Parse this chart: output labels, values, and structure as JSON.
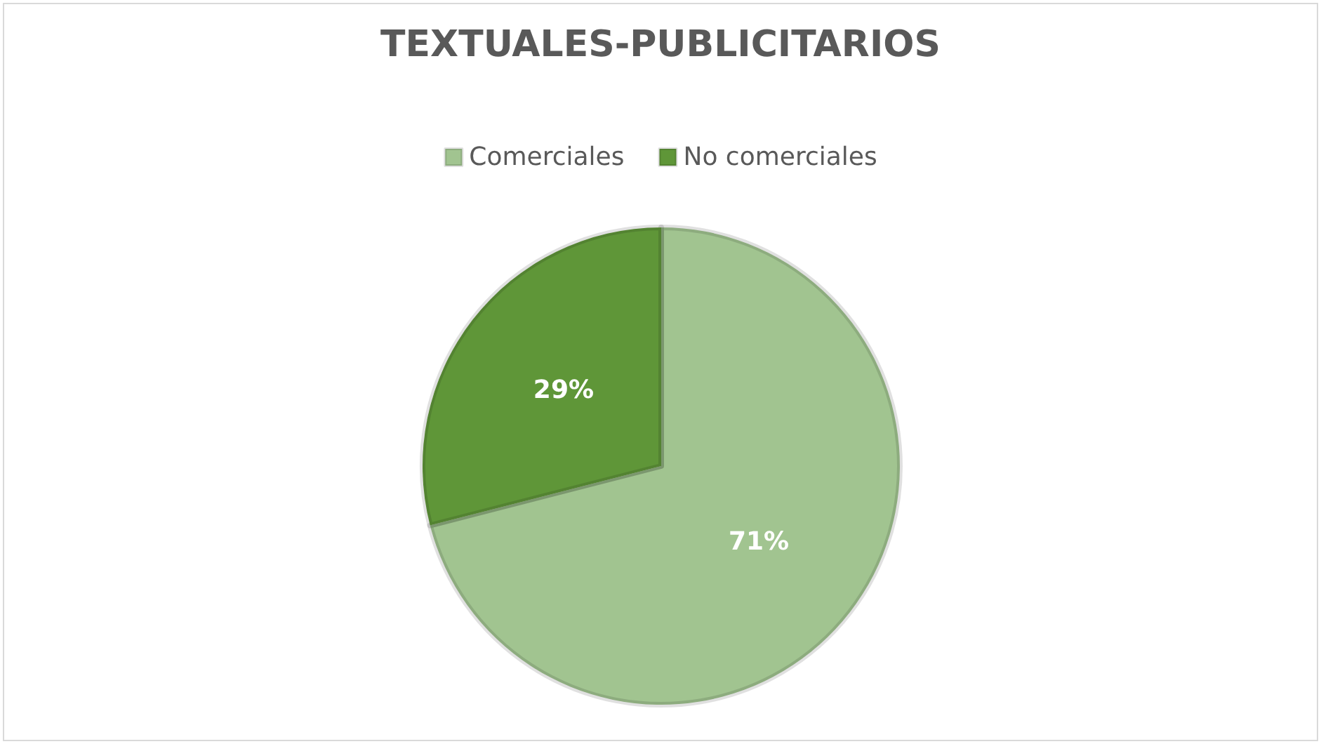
{
  "chart_data": {
    "type": "pie",
    "title": "TEXTUALES-PUBLICITARIOS",
    "categories": [
      "Comerciales",
      "No comerciales"
    ],
    "values": [
      71,
      29
    ],
    "colors": [
      "#a1c490",
      "#5f9638"
    ],
    "value_labels": [
      "71%",
      "29%"
    ],
    "legend": "top"
  }
}
